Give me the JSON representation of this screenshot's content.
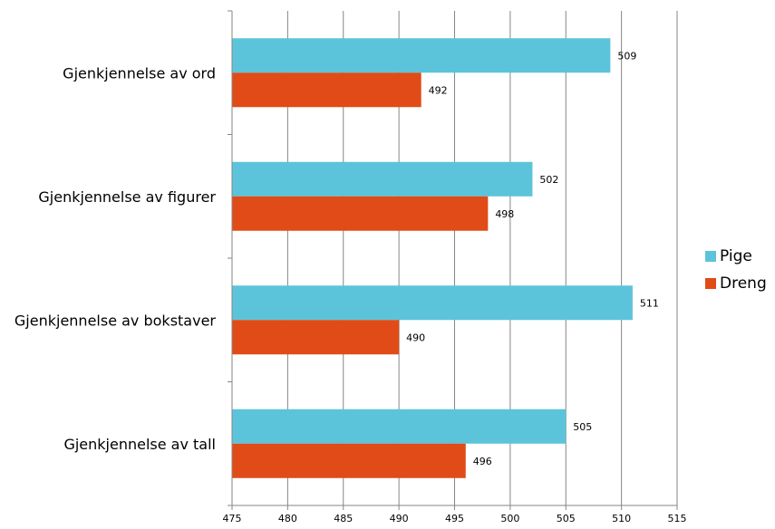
{
  "chart_data": {
    "type": "bar",
    "orientation": "horizontal",
    "categories": [
      "Gjenkjennelse av ord",
      "Gjenkjennelse av figurer",
      "Gjenkjennelse av bokstaver",
      "Gjenkjennelse av tall"
    ],
    "series": [
      {
        "name": "Pige",
        "color": "#5bc4da",
        "values": [
          509,
          502,
          511,
          505
        ]
      },
      {
        "name": "Dreng",
        "color": "#e04b17",
        "values": [
          492,
          498,
          490,
          496
        ]
      }
    ],
    "xlim": [
      475,
      515
    ],
    "xticks": [
      "475",
      "480",
      "485",
      "490",
      "495",
      "500",
      "505",
      "510",
      "515"
    ],
    "grid": true,
    "legend_position": "right",
    "data_labels": true
  }
}
